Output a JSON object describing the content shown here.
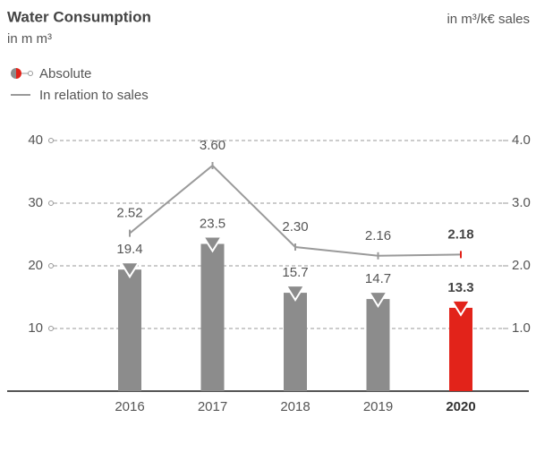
{
  "chart_data": {
    "type": "bar-line",
    "title": "Water Consumption",
    "subtitle": "in m m³",
    "y2_label": "in m³/k€ sales",
    "categories": [
      "2016",
      "2017",
      "2018",
      "2019",
      "2020"
    ],
    "series": [
      {
        "name": "Absolute",
        "type": "bar",
        "colors": [
          "#8c8c8c",
          "#8c8c8c",
          "#8c8c8c",
          "#8c8c8c",
          "#e2231a"
        ],
        "values": [
          19.4,
          23.5,
          15.7,
          14.7,
          13.3
        ]
      },
      {
        "name": "In relation to sales",
        "type": "line",
        "axis": "y2",
        "color": "#9a9a9a",
        "marker_colors": [
          "#9a9a9a",
          "#9a9a9a",
          "#9a9a9a",
          "#9a9a9a",
          "#e2231a"
        ],
        "values": [
          2.52,
          3.6,
          2.3,
          2.16,
          2.18
        ],
        "value_labels": [
          "2.52",
          "3.60",
          "2.30",
          "2.16",
          "2.18"
        ]
      }
    ],
    "ylim": [
      0,
      40
    ],
    "yticks": [
      10,
      20,
      30,
      40
    ],
    "y2lim": [
      0,
      4
    ],
    "y2ticks": [
      {
        "value": 1,
        "label": "1.0"
      },
      {
        "value": 2,
        "label": "2.0"
      },
      {
        "value": 3,
        "label": "3.0"
      },
      {
        "value": 4,
        "label": "4.0"
      }
    ],
    "grid": true
  }
}
